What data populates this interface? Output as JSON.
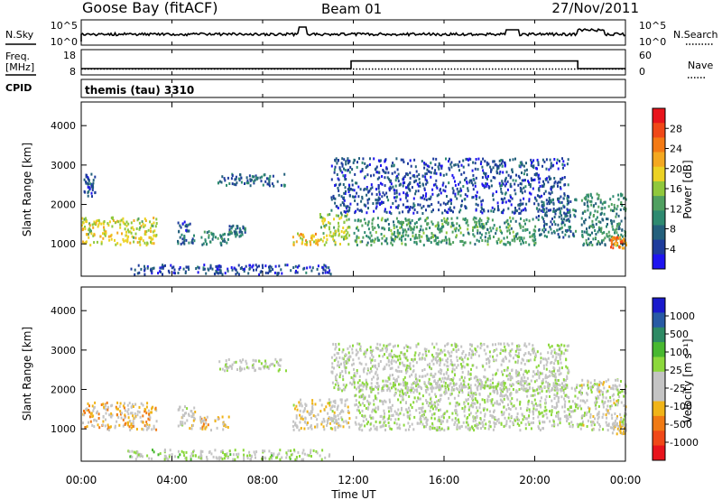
{
  "header": {
    "station": "Goose Bay (fitACF)",
    "beam": "Beam 01",
    "date": "27/Nov/2011"
  },
  "noise_panel": {
    "left_label": "N.Sky",
    "left_top": "10^5",
    "left_bottom": "10^0",
    "right_label": "N.Search",
    "right_top": "10^5",
    "right_bottom": "10^0"
  },
  "freq_panel": {
    "left_label_1": "Freq.",
    "left_label_2": "[MHz]",
    "left_top": "18",
    "left_bottom": "8",
    "right_label": "Nave",
    "right_top": "60",
    "right_bottom": "0"
  },
  "cpid": {
    "label": "CPID",
    "text": "themis (tau) 3310"
  },
  "axes": {
    "xlabel": "Time UT",
    "x_ticks": [
      "00:00",
      "04:00",
      "08:00",
      "12:00",
      "16:00",
      "20:00",
      "00:00"
    ],
    "ylabel": "Slant Range [km]",
    "y_ticks": [
      "1000",
      "2000",
      "3000",
      "4000"
    ]
  },
  "power_colorbar": {
    "label": "Power [dB]",
    "ticks": [
      "28",
      "24",
      "20",
      "16",
      "12",
      "8",
      "4"
    ],
    "colors": [
      "#e8141c",
      "#f04818",
      "#f47a14",
      "#f4a820",
      "#ecd224",
      "#90c83c",
      "#50a060",
      "#2e8a70",
      "#24607c",
      "#1e3c9c",
      "#1e14f0"
    ]
  },
  "velocity_colorbar": {
    "label": "Velocity [m s⁻¹]",
    "ticks": [
      "1000",
      "500",
      "100",
      "25",
      "-25",
      "-100",
      "-500",
      "-1000"
    ],
    "colors": [
      "#1a1acc",
      "#285aa4",
      "#2e8a64",
      "#48b830",
      "#8cd83c",
      "#c4c4c4",
      "#c4c4c4",
      "#f0b418",
      "#f07a14",
      "#f04818",
      "#e8141c"
    ]
  },
  "chart_data": [
    {
      "type": "heatmap",
      "title": "",
      "xlabel": "Time UT",
      "ylabel": "Slant Range [km]",
      "x_unit": "hours UT",
      "xlim": [
        0,
        24
      ],
      "ylim": [
        180,
        4600
      ],
      "colorbar": {
        "label": "Power [dB]",
        "range": [
          0,
          32
        ]
      },
      "regions": [
        {
          "t": [
            0.0,
            3.3
          ],
          "range": [
            1000,
            1700
          ],
          "value": 18
        },
        {
          "t": [
            0.1,
            0.6
          ],
          "range": [
            2200,
            2800
          ],
          "value": 6
        },
        {
          "t": [
            4.2,
            5.0
          ],
          "range": [
            1000,
            1600
          ],
          "value": 6
        },
        {
          "t": [
            5.2,
            6.5
          ],
          "range": [
            1000,
            1350
          ],
          "value": 10
        },
        {
          "t": [
            6.5,
            7.2
          ],
          "range": [
            1200,
            1500
          ],
          "value": 8
        },
        {
          "t": [
            6.0,
            9.0
          ],
          "range": [
            2500,
            2800
          ],
          "value": 7
        },
        {
          "t": [
            9.3,
            10.5
          ],
          "range": [
            1000,
            1300
          ],
          "value": 20
        },
        {
          "t": [
            10.5,
            11.8
          ],
          "range": [
            1000,
            1800
          ],
          "value": 16
        },
        {
          "t": [
            12.0,
            20.0
          ],
          "range": [
            1000,
            1700
          ],
          "value": 12
        },
        {
          "t": [
            11.0,
            21.5
          ],
          "range": [
            1800,
            3200
          ],
          "value": 5
        },
        {
          "t": [
            20.0,
            21.8
          ],
          "range": [
            1200,
            2200
          ],
          "value": 8
        },
        {
          "t": [
            22.0,
            24.0
          ],
          "range": [
            1000,
            2300
          ],
          "value": 10
        },
        {
          "t": [
            23.3,
            24.0
          ],
          "range": [
            900,
            1200
          ],
          "value": 24
        },
        {
          "t": [
            2.0,
            11.0
          ],
          "range": [
            250,
            500
          ],
          "value": 5
        }
      ]
    },
    {
      "type": "heatmap",
      "title": "",
      "xlabel": "Time UT",
      "ylabel": "Slant Range [km]",
      "x_unit": "hours UT",
      "xlim": [
        0,
        24
      ],
      "ylim": [
        180,
        4600
      ],
      "colorbar": {
        "label": "Velocity [m s⁻¹]",
        "range": [
          -1000,
          1000
        ]
      },
      "regions": [
        {
          "t": [
            0.0,
            3.3
          ],
          "range": [
            1000,
            1700
          ],
          "value": -300
        },
        {
          "t": [
            4.2,
            5.0
          ],
          "range": [
            1000,
            1600
          ],
          "value": -100
        },
        {
          "t": [
            5.2,
            6.5
          ],
          "range": [
            1000,
            1350
          ],
          "value": -300
        },
        {
          "t": [
            6.0,
            9.0
          ],
          "range": [
            2500,
            2800
          ],
          "value": 0
        },
        {
          "t": [
            9.3,
            11.8
          ],
          "range": [
            1000,
            1800
          ],
          "value": -150
        },
        {
          "t": [
            12.0,
            22.0
          ],
          "range": [
            1000,
            2200
          ],
          "value": 0
        },
        {
          "t": [
            11.0,
            21.5
          ],
          "range": [
            2000,
            3200
          ],
          "value": 0
        },
        {
          "t": [
            22.0,
            24.0
          ],
          "range": [
            1000,
            2300
          ],
          "value": -50
        },
        {
          "t": [
            23.3,
            24.0
          ],
          "range": [
            900,
            1200
          ],
          "value": -200
        },
        {
          "t": [
            2.0,
            11.0
          ],
          "range": [
            250,
            500
          ],
          "value": 50
        }
      ]
    },
    {
      "type": "line",
      "title": "",
      "xlabel": "Time UT",
      "xlim": [
        0,
        24
      ],
      "series": [
        {
          "name": "Freq.",
          "x": [
            0,
            11.9,
            11.9,
            21.9,
            21.9,
            24
          ],
          "y": [
            10.5,
            10.5,
            13.5,
            13.5,
            10.5,
            10.5
          ]
        },
        {
          "name": "Nave",
          "x": [
            0,
            24
          ],
          "y": [
            14,
            14
          ]
        }
      ]
    }
  ]
}
